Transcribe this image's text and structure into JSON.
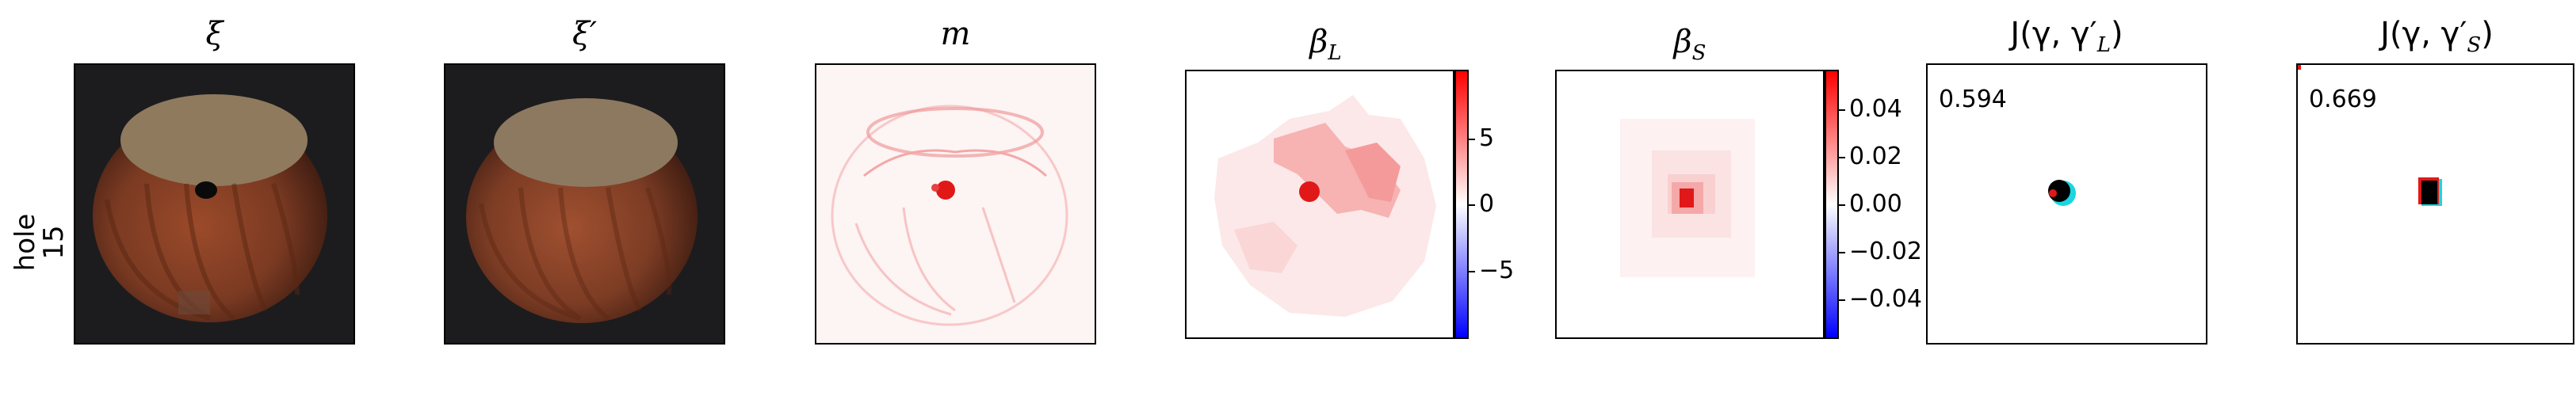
{
  "row_label": {
    "line1": "hole",
    "line2": "15"
  },
  "panels": {
    "xi": {
      "title": "ξ"
    },
    "xi_prime": {
      "title": "ξ′"
    },
    "m": {
      "title": "m"
    },
    "beta_l": {
      "title": "β",
      "sub": "L",
      "colorbar": {
        "ticks": [
          "5",
          "0",
          "−5"
        ],
        "colors": [
          "#0000ff",
          "#ffffff",
          "#ff0000"
        ]
      }
    },
    "beta_s": {
      "title": "β",
      "sub": "S",
      "colorbar": {
        "ticks": [
          "0.04",
          "0.02",
          "0.00",
          "−0.02",
          "−0.04"
        ],
        "colors": [
          "#0000ff",
          "#ffffff",
          "#ff0000"
        ]
      }
    },
    "j_l": {
      "title_pre": "J(γ, γ",
      "title_sub": "L",
      "title_post": ")",
      "prime": "′",
      "score": "0.594"
    },
    "j_s": {
      "title_pre": "J(γ, γ",
      "title_sub": "S",
      "title_post": ")",
      "prime": "′",
      "score": "0.669"
    }
  },
  "colors": {
    "nut_shell": "#7a3a22",
    "nut_top": "#8f7a5e",
    "background_dark": "#1c1c1e",
    "mask_red": "#e01818",
    "mask_cyan": "#19d6e0"
  }
}
